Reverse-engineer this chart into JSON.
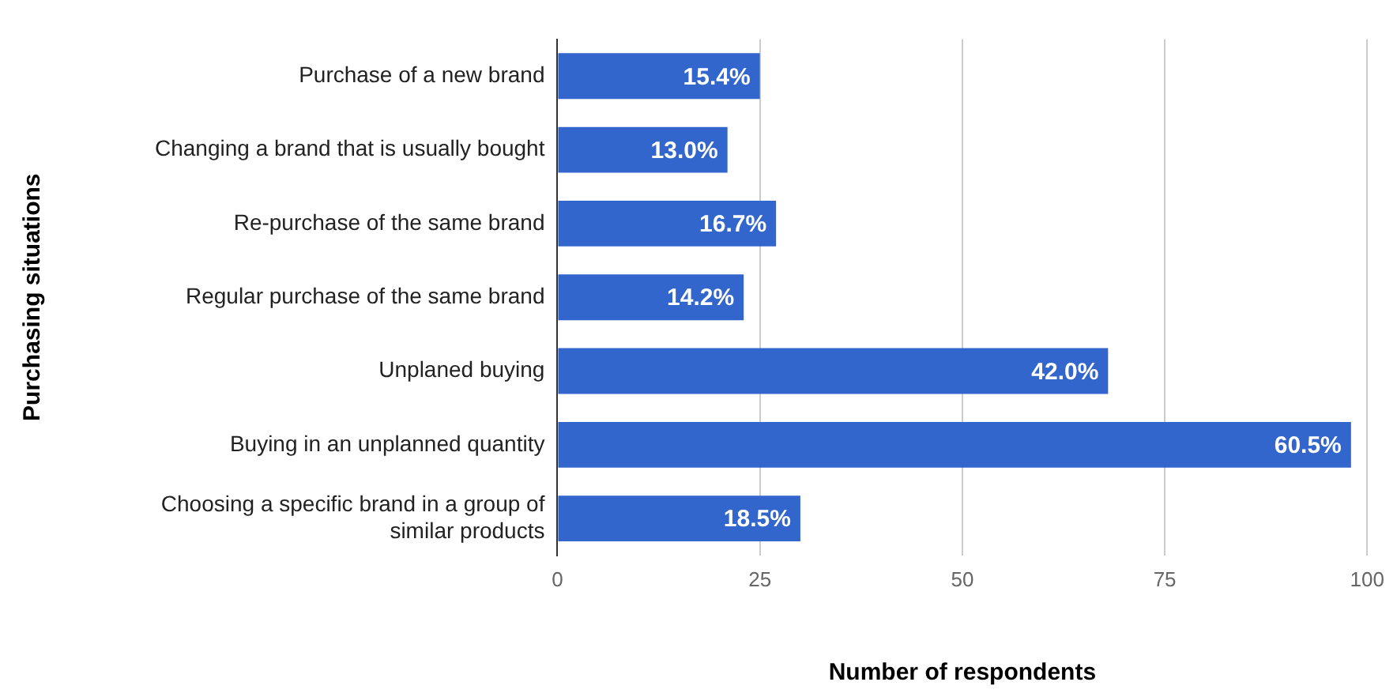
{
  "chart_data": {
    "type": "bar",
    "orientation": "horizontal",
    "xlabel": "Number of respondents",
    "ylabel": "Purchasing situations",
    "categories": [
      "Purchase of a new brand",
      "Changing a brand that is usually bought",
      "Re-purchase of the same brand",
      "Regular purchase of the same brand",
      "Unplaned buying",
      "Buying in an unplanned quantity",
      "Choosing a specific brand in a group of similar products"
    ],
    "values": [
      25,
      21,
      27,
      23,
      68,
      98,
      30
    ],
    "annotations": [
      {
        "text": "15.4%",
        "x": 25,
        "y": "Purchase of a new brand"
      },
      {
        "text": "13.0%",
        "x": 21,
        "y": "Changing a brand that is usually bought"
      },
      {
        "text": "16.7%",
        "x": 27,
        "y": "Re-purchase of the same brand"
      },
      {
        "text": "14.2%",
        "x": 23,
        "y": "Regular purchase of the same brand"
      },
      {
        "text": "42.0%",
        "x": 68,
        "y": "Unplaned buying"
      },
      {
        "text": "60.5%",
        "x": 98,
        "y": "Buying in an unplanned quantity"
      },
      {
        "text": "18.5%",
        "x": 30,
        "y": "Choosing a specific brand in a group of similar products"
      }
    ],
    "color": "#3366cc",
    "xlim": [
      0,
      100
    ],
    "xticks": [
      0,
      25,
      50,
      75,
      100
    ],
    "grid": "x",
    "legend": false
  }
}
